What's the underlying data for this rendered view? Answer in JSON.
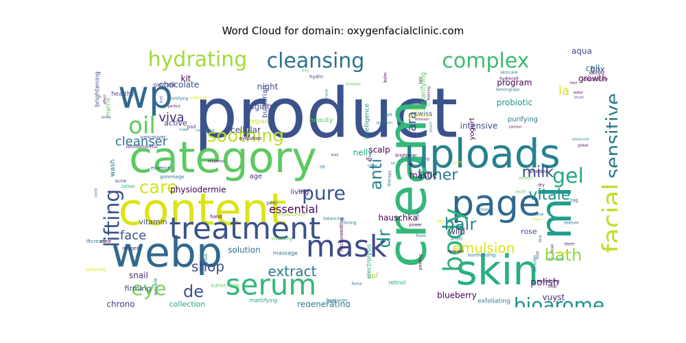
{
  "chart_data": {
    "type": "wordcloud",
    "title": "Word Cloud for domain: oxygenfacialclinic.com",
    "background": "#ffffff",
    "colormap": "viridis",
    "words": [
      {
        "text": "product",
        "weight": 100,
        "color": "#3b528b"
      },
      {
        "text": "cream",
        "weight": 78,
        "color": "#35b779"
      },
      {
        "text": "category",
        "weight": 62,
        "color": "#5ec962"
      },
      {
        "text": "content",
        "weight": 64,
        "color": "#dde318"
      },
      {
        "text": "webp",
        "weight": 60,
        "color": "#31688e"
      },
      {
        "text": "uploads",
        "weight": 58,
        "color": "#26828e"
      },
      {
        "text": "skin",
        "weight": 60,
        "color": "#29af7f"
      },
      {
        "text": "ml",
        "weight": 62,
        "color": "#1f9e89"
      },
      {
        "text": "wp",
        "weight": 55,
        "color": "#31688e"
      },
      {
        "text": "page",
        "weight": 52,
        "color": "#31688e"
      },
      {
        "text": "treatment",
        "weight": 44,
        "color": "#3b528b"
      },
      {
        "text": "mask",
        "weight": 44,
        "color": "#3e4a89"
      },
      {
        "text": "serum",
        "weight": 42,
        "color": "#35b779"
      },
      {
        "text": "body",
        "weight": 38,
        "color": "#2db27d"
      },
      {
        "text": "facial",
        "weight": 38,
        "color": "#bddf26"
      },
      {
        "text": "oil",
        "weight": 34,
        "color": "#5ec962"
      },
      {
        "text": "lifting",
        "weight": 30,
        "color": "#3b528b"
      },
      {
        "text": "hydrating",
        "weight": 30,
        "color": "#a0da39"
      },
      {
        "text": "cleansing",
        "weight": 30,
        "color": "#2c728e"
      },
      {
        "text": "complex",
        "weight": 30,
        "color": "#3fbc73"
      },
      {
        "text": "bioarome",
        "weight": 28,
        "color": "#21918c"
      },
      {
        "text": "gel",
        "weight": 30,
        "color": "#22a884"
      },
      {
        "text": "sensitive",
        "weight": 28,
        "color": "#2a788e"
      },
      {
        "text": "eye",
        "weight": 28,
        "color": "#7ad151"
      },
      {
        "text": "pure",
        "weight": 28,
        "color": "#3b528b"
      },
      {
        "text": "soothing",
        "weight": 26,
        "color": "#bddf26"
      },
      {
        "text": "care",
        "weight": 26,
        "color": "#d2e21b"
      },
      {
        "text": "dr",
        "weight": 26,
        "color": "#21918c"
      },
      {
        "text": "de",
        "weight": 24,
        "color": "#3b528b"
      },
      {
        "text": "anti",
        "weight": 24,
        "color": "#26828e"
      },
      {
        "text": "hair",
        "weight": 24,
        "color": "#26828e"
      },
      {
        "text": "bath",
        "weight": 24,
        "color": "#90d743"
      },
      {
        "text": "vitale",
        "weight": 22,
        "color": "#21918c"
      },
      {
        "text": "toner",
        "weight": 22,
        "color": "#2a788e"
      },
      {
        "text": "milk",
        "weight": 22,
        "color": "#3e4a89"
      },
      {
        "text": "emulsion",
        "weight": 20,
        "color": "#dde318"
      },
      {
        "text": "shop",
        "weight": 20,
        "color": "#3e4a89"
      },
      {
        "text": "extract",
        "weight": 20,
        "color": "#2a788e"
      },
      {
        "text": "viva",
        "weight": 18,
        "color": "#482878"
      },
      {
        "text": "cleanser",
        "weight": 18,
        "color": "#2c728e"
      },
      {
        "text": "face",
        "weight": 18,
        "color": "#3b528b"
      },
      {
        "text": "cara",
        "weight": 18,
        "color": "#3e4a89"
      },
      {
        "text": "la",
        "weight": 18,
        "color": "#dde318"
      },
      {
        "text": "essential",
        "weight": 16,
        "color": "#440154"
      },
      {
        "text": "polish",
        "weight": 14,
        "color": "#482878"
      },
      {
        "text": "intensive",
        "weight": 12,
        "color": "#3e4a89"
      },
      {
        "text": "solution",
        "weight": 12,
        "color": "#2a788e"
      },
      {
        "text": "blueberry",
        "weight": 12,
        "color": "#440154"
      },
      {
        "text": "regenerating",
        "weight": 12,
        "color": "#2a788e"
      },
      {
        "text": "vuyst",
        "weight": 12,
        "color": "#482878"
      },
      {
        "text": "hauschka",
        "weight": 12,
        "color": "#440154"
      },
      {
        "text": "snail",
        "weight": 12,
        "color": "#482878"
      },
      {
        "text": "chrono",
        "weight": 12,
        "color": "#443983"
      },
      {
        "text": "collection",
        "weight": 11,
        "color": "#20a386"
      },
      {
        "text": "nelly",
        "weight": 12,
        "color": "#20a386"
      },
      {
        "text": "chocolate",
        "weight": 12,
        "color": "#3e4a89"
      },
      {
        "text": "physiodermie",
        "weight": 12,
        "color": "#440154"
      },
      {
        "text": "cellular",
        "weight": 12,
        "color": "#3e4a89"
      },
      {
        "text": "scalp",
        "weight": 12,
        "color": "#440154"
      },
      {
        "text": "program",
        "weight": 12,
        "color": "#440154"
      },
      {
        "text": "probiotic",
        "weight": 12,
        "color": "#21918c"
      },
      {
        "text": "growth",
        "weight": 12,
        "color": "#440154"
      },
      {
        "text": "aqua",
        "weight": 12,
        "color": "#3e4a89"
      },
      {
        "text": "cell",
        "weight": 12,
        "color": "#31688e"
      },
      {
        "text": "box",
        "weight": 12,
        "color": "#3b528b"
      },
      {
        "text": "rose",
        "weight": 11,
        "color": "#3e4a89"
      },
      {
        "text": "wild",
        "weight": 12,
        "color": "#482878"
      },
      {
        "text": "mastic",
        "weight": 12,
        "color": "#440154"
      },
      {
        "text": "vitamin",
        "weight": 11,
        "color": "#3e4a89"
      },
      {
        "text": "firming",
        "weight": 11,
        "color": "#3e4a89"
      },
      {
        "text": "aging",
        "weight": 12,
        "color": "#3e4a89"
      },
      {
        "text": "night",
        "weight": 12,
        "color": "#3e4a89"
      },
      {
        "text": "kit",
        "weight": 12,
        "color": "#440154"
      },
      {
        "text": "active",
        "weight": 11,
        "color": "#443983"
      },
      {
        "text": "living",
        "weight": 10,
        "color": "#482878"
      },
      {
        "text": "age",
        "weight": 10,
        "color": "#482878"
      },
      {
        "text": "spf",
        "weight": 10,
        "color": "#a0da39"
      },
      {
        "text": "wash",
        "weight": 10,
        "color": "#2a788e"
      },
      {
        "text": "swiss",
        "weight": 10,
        "color": "#3e4a89"
      },
      {
        "text": "repair",
        "weight": 10,
        "color": "#d2e21b"
      },
      {
        "text": "beauty",
        "weight": 10,
        "color": "#5ec962"
      },
      {
        "text": "purifying",
        "weight": 10,
        "color": "#2a788e"
      },
      {
        "text": "yogurt",
        "weight": 10,
        "color": "#440154"
      },
      {
        "text": "clarifying",
        "weight": 10,
        "color": "#5ec962"
      },
      {
        "text": "bulgarian",
        "weight": 10,
        "color": "#3e4a89"
      },
      {
        "text": "intelligence",
        "weight": 9,
        "color": "#26828e"
      },
      {
        "text": "brightening",
        "weight": 9,
        "color": "#3e4a89"
      },
      {
        "text": "matrix",
        "weight": 9,
        "color": "#5ec962"
      },
      {
        "text": "healthy",
        "weight": 9,
        "color": "#3e4a89"
      },
      {
        "text": "oxycell",
        "weight": 9,
        "color": "#3e4a89"
      },
      {
        "text": "electrolysis",
        "weight": 9,
        "color": "#22a884"
      },
      {
        "text": "exfoliating",
        "weight": 9,
        "color": "#2a788e"
      },
      {
        "text": "massage",
        "weight": 8,
        "color": "#2a788e"
      },
      {
        "text": "sunscreen",
        "weight": 8,
        "color": "#5ec962"
      },
      {
        "text": "mattifying",
        "weight": 8,
        "color": "#20a386"
      },
      {
        "text": "retinol",
        "weight": 8,
        "color": "#20a386"
      },
      {
        "text": "hyaluron",
        "weight": 7,
        "color": "#2a788e"
      },
      {
        "text": "iontophoretic",
        "weight": 7,
        "color": "#482878"
      },
      {
        "text": "vancouver",
        "weight": 7,
        "color": "#3e4a89"
      },
      {
        "text": "lotion",
        "weight": 7,
        "color": "#22a884"
      },
      {
        "text": "acne",
        "weight": 7,
        "color": "#3e4a89"
      },
      {
        "text": "peel",
        "weight": 7,
        "color": "#3e4a89"
      },
      {
        "text": "essence",
        "weight": 7,
        "color": "#3e4a89"
      },
      {
        "text": "gommage",
        "weight": 6,
        "color": "#2a788e"
      },
      {
        "text": "evolution",
        "weight": 7,
        "color": "#440154"
      },
      {
        "text": "moisturizer",
        "weight": 7,
        "color": "#a0da39"
      },
      {
        "text": "microneedling",
        "weight": 7,
        "color": "#440154"
      },
      {
        "text": "vitalising",
        "weight": 7,
        "color": "#5ec962"
      },
      {
        "text": "hand",
        "weight": 7,
        "color": "#440154"
      },
      {
        "text": "zone",
        "weight": 6,
        "color": "#440154"
      },
      {
        "text": "liftcream",
        "weight": 6,
        "color": "#2a788e"
      },
      {
        "text": "plus",
        "weight": 6,
        "color": "#2a788e"
      },
      {
        "text": "wrinkle",
        "weight": 6,
        "color": "#2a788e"
      },
      {
        "text": "nurturing",
        "weight": 6,
        "color": "#dde318"
      },
      {
        "text": "oxygen",
        "weight": 6,
        "color": "#482878"
      },
      {
        "text": "pad",
        "weight": 6,
        "color": "#3e4a89"
      },
      {
        "text": "sync",
        "weight": 7,
        "color": "#3e4a89"
      },
      {
        "text": "lift",
        "weight": 7,
        "color": "#2a788e"
      },
      {
        "text": "therapy",
        "weight": 6,
        "color": "#2a788e"
      },
      {
        "text": "scrub",
        "weight": 6,
        "color": "#440154"
      },
      {
        "text": "brightener",
        "weight": 6,
        "color": "#440154"
      },
      {
        "text": "clear",
        "weight": 6,
        "color": "#2a788e"
      },
      {
        "text": "power",
        "weight": 6,
        "color": "#440154"
      },
      {
        "text": "daily",
        "weight": 6,
        "color": "#3e4a89"
      },
      {
        "text": "day",
        "weight": 6,
        "color": "#dde318"
      },
      {
        "text": "phyto",
        "weight": 7,
        "color": "#2a788e"
      },
      {
        "text": "foam",
        "weight": 6,
        "color": "#2a788e"
      },
      {
        "text": "renewal",
        "weight": 6,
        "color": "#440154"
      },
      {
        "text": "normalizing",
        "weight": 6,
        "color": "#2a788e"
      },
      {
        "text": "peeling",
        "weight": 6,
        "color": "#440154"
      },
      {
        "text": "force",
        "weight": 7,
        "color": "#2a788e"
      },
      {
        "text": "balancing",
        "weight": 6,
        "color": "#2a788e"
      },
      {
        "text": "toning",
        "weight": 6,
        "color": "#2a788e"
      },
      {
        "text": "action",
        "weight": 6,
        "color": "#2a788e"
      },
      {
        "text": "multi",
        "weight": 6,
        "color": "#5ec962"
      },
      {
        "text": "actinyl",
        "weight": 6,
        "color": "#5ec962"
      },
      {
        "text": "dry",
        "weight": 6,
        "color": "#440154"
      },
      {
        "text": "powder",
        "weight": 6,
        "color": "#482878"
      },
      {
        "text": "creme",
        "weight": 6,
        "color": "#2a788e"
      },
      {
        "text": "tag",
        "weight": 6,
        "color": "#2a788e"
      },
      {
        "text": "texture",
        "weight": 6,
        "color": "#2a788e"
      },
      {
        "text": "line",
        "weight": 7,
        "color": "#2a788e"
      },
      {
        "text": "lavender",
        "weight": 6,
        "color": "#dde318"
      },
      {
        "text": "stem",
        "weight": 7,
        "color": "#482878"
      },
      {
        "text": "almond",
        "weight": 6,
        "color": "#22a884"
      },
      {
        "text": "revitalising",
        "weight": 6,
        "color": "#440154"
      },
      {
        "text": "vital",
        "weight": 6,
        "color": "#440154"
      },
      {
        "text": "booster",
        "weight": 6,
        "color": "#5ec962"
      },
      {
        "text": "charcoal",
        "weight": 6,
        "color": "#2a788e"
      },
      {
        "text": "oleaslim",
        "weight": 6,
        "color": "#2a788e"
      },
      {
        "text": "foot",
        "weight": 6,
        "color": "#3e4a89"
      },
      {
        "text": "news",
        "weight": 6,
        "color": "#440154"
      },
      {
        "text": "north",
        "weight": 6,
        "color": "#3e4a89"
      },
      {
        "text": "make",
        "weight": 6,
        "color": "#2a788e"
      },
      {
        "text": "comforting",
        "weight": 5,
        "color": "#2a788e"
      },
      {
        "text": "fortifying",
        "weight": 5,
        "color": "#2a788e"
      },
      {
        "text": "calming",
        "weight": 5,
        "color": "#dde318"
      },
      {
        "text": "perfect",
        "weight": 5,
        "color": "#440154"
      },
      {
        "text": "bust",
        "weight": 5,
        "color": "#3e4a89"
      },
      {
        "text": "effect",
        "weight": 6,
        "color": "#440154"
      },
      {
        "text": "botox",
        "weight": 6,
        "color": "#3e4a89"
      },
      {
        "text": "hydro",
        "weight": 5,
        "color": "#3e4a89"
      },
      {
        "text": "oily",
        "weight": 5,
        "color": "#5ec962"
      },
      {
        "text": "shower",
        "weight": 5,
        "color": "#5ec962"
      },
      {
        "text": "balm",
        "weight": 5,
        "color": "#440154"
      },
      {
        "text": "travel",
        "weight": 7,
        "color": "#2a788e"
      },
      {
        "text": "spectrum",
        "weight": 6,
        "color": "#2a788e"
      },
      {
        "text": "conditioner",
        "weight": 6,
        "color": "#dde318"
      },
      {
        "text": "remover",
        "weight": 6,
        "color": "#440154"
      },
      {
        "text": "revitalizing",
        "weight": 5,
        "color": "#5ec962"
      },
      {
        "text": "broad",
        "weight": 5,
        "color": "#dde318"
      },
      {
        "text": "soft",
        "weight": 6,
        "color": "#2a788e"
      },
      {
        "text": "tm",
        "weight": 5,
        "color": "#2a788e"
      },
      {
        "text": "mini",
        "weight": 5,
        "color": "#440154"
      },
      {
        "text": "leg",
        "weight": 5,
        "color": "#440154"
      },
      {
        "text": "lip",
        "weight": 6,
        "color": "#3e4a89"
      },
      {
        "text": "pure",
        "weight": 5,
        "color": "#dde318"
      },
      {
        "text": "pouch",
        "weight": 5,
        "color": "#2a788e"
      },
      {
        "text": "foaming",
        "weight": 6,
        "color": "#440154"
      },
      {
        "text": "light",
        "weight": 6,
        "color": "#440154"
      },
      {
        "text": "skincare",
        "weight": 6,
        "color": "#2a788e"
      },
      {
        "text": "hydrocell",
        "weight": 5,
        "color": "#440154"
      },
      {
        "text": "lemongrass",
        "weight": 5,
        "color": "#2a788e"
      },
      {
        "text": "concentrate",
        "weight": 5,
        "color": "#440154"
      },
      {
        "text": "salicylic",
        "weight": 6,
        "color": "#440154"
      },
      {
        "text": "men",
        "weight": 6,
        "color": "#440154"
      },
      {
        "text": "water",
        "weight": 6,
        "color": "#440154"
      },
      {
        "text": "brush",
        "weight": 6,
        "color": "#3e4a89"
      },
      {
        "text": "contour",
        "weight": 6,
        "color": "#440154"
      },
      {
        "text": "advanced",
        "weight": 5,
        "color": "#2a788e"
      },
      {
        "text": "global",
        "weight": 5,
        "color": "#440154"
      },
      {
        "text": "oxygeneo",
        "weight": 5,
        "color": "#440154"
      },
      {
        "text": "white",
        "weight": 5,
        "color": "#2a788e"
      },
      {
        "text": "lemon",
        "weight": 5,
        "color": "#dde318"
      },
      {
        "text": "shock",
        "weight": 5,
        "color": "#440154"
      },
      {
        "text": "morelli",
        "weight": 5,
        "color": "#440154"
      },
      {
        "text": "ndv",
        "weight": 5,
        "color": "#2a788e"
      },
      {
        "text": "hy",
        "weight": 5,
        "color": "#440154"
      }
    ]
  }
}
